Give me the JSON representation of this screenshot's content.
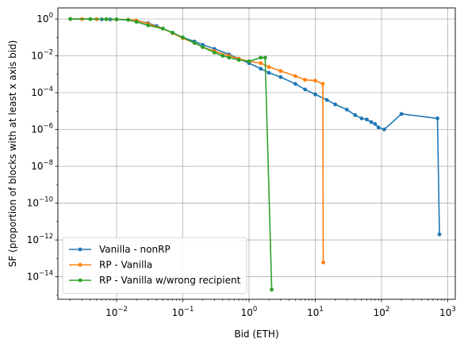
{
  "chart_data": {
    "type": "line",
    "title": "",
    "xlabel": "Bid (ETH)",
    "ylabel": "SF (proportion of blocks with at least x axis bid)",
    "xscale": "log",
    "yscale": "log",
    "xlim": [
      0.0013,
      1300
    ],
    "ylim": [
      6e-16,
      4
    ],
    "x_ticks": [
      {
        "value": 0.01,
        "base": "10",
        "exp": "−2"
      },
      {
        "value": 0.1,
        "base": "10",
        "exp": "−1"
      },
      {
        "value": 1,
        "base": "10",
        "exp": "0"
      },
      {
        "value": 10,
        "base": "10",
        "exp": "1"
      },
      {
        "value": 100,
        "base": "10",
        "exp": "2"
      },
      {
        "value": 1000,
        "base": "10",
        "exp": "3"
      }
    ],
    "y_ticks": [
      {
        "value": 1e-14,
        "base": "10",
        "exp": "−14"
      },
      {
        "value": 1e-12,
        "base": "10",
        "exp": "−12"
      },
      {
        "value": 1e-10,
        "base": "10",
        "exp": "−10"
      },
      {
        "value": 1e-08,
        "base": "10",
        "exp": "−8"
      },
      {
        "value": 1e-06,
        "base": "10",
        "exp": "−6"
      },
      {
        "value": 0.0001,
        "base": "10",
        "exp": "−4"
      },
      {
        "value": 0.01,
        "base": "10",
        "exp": "−2"
      },
      {
        "value": 1,
        "base": "10",
        "exp": "0"
      }
    ],
    "grid": true,
    "legend_position": "lower-left",
    "series": [
      {
        "name": "Vanilla - nonRP",
        "color": "#1f77b4",
        "x": [
          0.002,
          0.003,
          0.004,
          0.005,
          0.006,
          0.008,
          0.01,
          0.015,
          0.02,
          0.03,
          0.04,
          0.05,
          0.07,
          0.1,
          0.15,
          0.2,
          0.3,
          0.5,
          0.7,
          1.0,
          1.5,
          2,
          3,
          5,
          7,
          10,
          15,
          20,
          30,
          40,
          50,
          60,
          70,
          80,
          90,
          110,
          200,
          700,
          750
        ],
        "y": [
          1.0,
          0.99,
          0.98,
          0.97,
          0.96,
          0.95,
          0.93,
          0.9,
          0.82,
          0.6,
          0.42,
          0.3,
          0.18,
          0.1,
          0.06,
          0.04,
          0.024,
          0.012,
          0.007,
          0.004,
          0.002,
          0.0012,
          0.0007,
          0.0003,
          0.00015,
          8e-05,
          4e-05,
          2.3e-05,
          1.2e-05,
          6e-06,
          4e-06,
          3.5e-06,
          2.5e-06,
          2e-06,
          1.3e-06,
          1e-06,
          7e-06,
          4e-06,
          2e-12
        ]
      },
      {
        "name": "RP - Vanilla",
        "color": "#ff7f0e",
        "x": [
          0.002,
          0.003,
          0.005,
          0.007,
          0.01,
          0.015,
          0.02,
          0.03,
          0.05,
          0.07,
          0.1,
          0.15,
          0.2,
          0.3,
          0.5,
          0.7,
          1.0,
          1.5,
          2,
          3,
          5,
          7,
          10,
          13,
          13.2
        ],
        "y": [
          1.0,
          0.99,
          0.98,
          0.97,
          0.95,
          0.92,
          0.85,
          0.55,
          0.3,
          0.17,
          0.09,
          0.05,
          0.03,
          0.018,
          0.01,
          0.007,
          0.005,
          0.004,
          0.0025,
          0.0015,
          0.0008,
          0.0005,
          0.00045,
          0.0003,
          6e-14
        ]
      },
      {
        "name": "RP - Vanilla w/wrong recipient",
        "color": "#2ca02c",
        "x": [
          0.002,
          0.004,
          0.007,
          0.01,
          0.015,
          0.02,
          0.03,
          0.05,
          0.07,
          0.1,
          0.15,
          0.2,
          0.3,
          0.4,
          0.5,
          0.7,
          1.0,
          1.5,
          1.75,
          2.2
        ],
        "y": [
          1.0,
          0.99,
          0.98,
          0.96,
          0.9,
          0.7,
          0.45,
          0.3,
          0.18,
          0.1,
          0.05,
          0.03,
          0.015,
          0.01,
          0.008,
          0.006,
          0.005,
          0.008,
          0.008,
          2e-15
        ]
      }
    ]
  }
}
